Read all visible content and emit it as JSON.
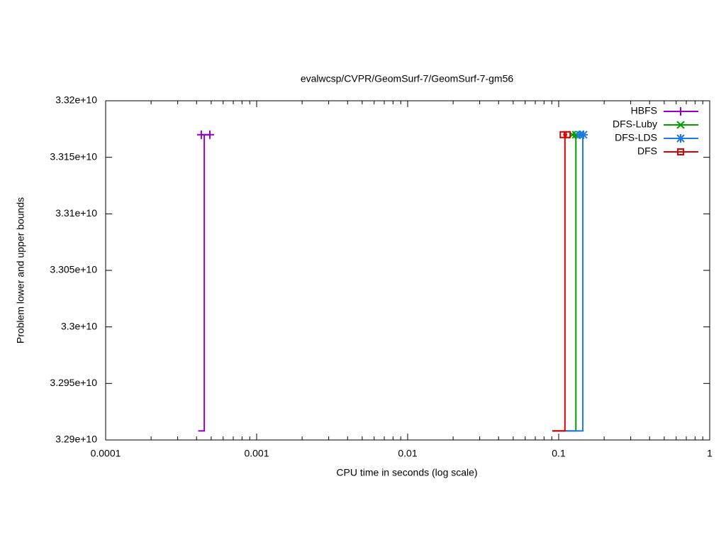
{
  "chart_data": {
    "type": "step",
    "title": "evalwcsp/CVPR/GeomSurf-7/GeomSurf-7-gm56",
    "xlabel": "CPU time in seconds (log scale)",
    "ylabel": "Problem lower and upper bounds",
    "xscale": "log",
    "xlim": [
      0.0001,
      1
    ],
    "xticks": [
      0.0001,
      0.001,
      0.01,
      0.1,
      1
    ],
    "ylim": [
      32900000000,
      33200000000
    ],
    "yticks": [
      {
        "value": 32900000000,
        "label": "3.29e+10"
      },
      {
        "value": 32950000000,
        "label": "3.295e+10"
      },
      {
        "value": 33000000000,
        "label": "3.3e+10"
      },
      {
        "value": 33050000000,
        "label": "3.305e+10"
      },
      {
        "value": 33100000000,
        "label": "3.31e+10"
      },
      {
        "value": 33150000000,
        "label": "3.315e+10"
      },
      {
        "value": 33200000000,
        "label": "3.32e+10"
      }
    ],
    "legend": "top-right",
    "series": [
      {
        "name": "HBFS",
        "color": "#9400d3",
        "marker": "plus",
        "lower_x": [
          0.00041,
          0.00045,
          0.00045
        ],
        "lower_values": [
          32908000000,
          32908000000,
          33170000000
        ],
        "upper_x": [
          0.00043,
          0.00049
        ],
        "upper_values": [
          33170000000,
          33170000000
        ]
      },
      {
        "name": "DFS-Luby",
        "color": "#00a000",
        "marker": "cross",
        "lower_x": [
          0.0908,
          0.13,
          0.13
        ],
        "lower_values": [
          32908000000,
          32908000000,
          33170000000
        ],
        "upper_x": [
          0.123,
          0.13
        ],
        "upper_values": [
          33170000000,
          33170000000
        ]
      },
      {
        "name": "DFS-LDS",
        "color": "#1e78e6",
        "marker": "star",
        "lower_x": [
          0.0908,
          0.1445,
          0.1445
        ],
        "lower_values": [
          32908000000,
          32908000000,
          33170000000
        ],
        "upper_x": [
          0.138,
          0.146
        ],
        "upper_values": [
          33170000000,
          33170000000
        ]
      },
      {
        "name": "DFS",
        "color": "#e00000",
        "marker": "square",
        "lower_x": [
          0.0908,
          0.11,
          0.11
        ],
        "lower_values": [
          32908000000,
          32908000000,
          33170000000
        ],
        "upper_x": [
          0.107,
          0.114
        ],
        "upper_values": [
          33170000000,
          33170000000
        ]
      }
    ]
  }
}
